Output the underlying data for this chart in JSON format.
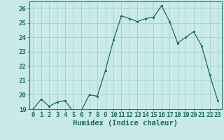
{
  "x": [
    0,
    1,
    2,
    3,
    4,
    5,
    6,
    7,
    8,
    9,
    10,
    11,
    12,
    13,
    14,
    15,
    16,
    17,
    18,
    19,
    20,
    21,
    22,
    23
  ],
  "y": [
    19.0,
    19.7,
    19.2,
    19.5,
    19.6,
    18.8,
    18.9,
    20.0,
    19.9,
    21.7,
    23.8,
    25.5,
    25.3,
    25.1,
    25.3,
    25.4,
    26.2,
    25.1,
    23.6,
    24.0,
    24.4,
    23.4,
    21.4,
    19.6
  ],
  "line_color": "#1a6b5a",
  "marker": ".",
  "marker_color": "#1a6b5a",
  "bg_color": "#c8eae8",
  "grid_color": "#aacfcc",
  "axis_color": "#2a7a6a",
  "tick_color": "#1a6b5a",
  "xlabel": "Humidex (Indice chaleur)",
  "xlabel_color": "#1a6b5a",
  "ylim": [
    19,
    26.5
  ],
  "yticks": [
    19,
    20,
    21,
    22,
    23,
    24,
    25,
    26
  ],
  "xticks": [
    0,
    1,
    2,
    3,
    4,
    5,
    6,
    7,
    8,
    9,
    10,
    11,
    12,
    13,
    14,
    15,
    16,
    17,
    18,
    19,
    20,
    21,
    22,
    23
  ],
  "xtick_labels": [
    "0",
    "1",
    "2",
    "3",
    "4",
    "5",
    "6",
    "7",
    "8",
    "9",
    "10",
    "11",
    "12",
    "13",
    "14",
    "15",
    "16",
    "17",
    "18",
    "19",
    "20",
    "21",
    "22",
    "23"
  ],
  "font_size": 6.5,
  "xlabel_fontsize": 7.5
}
